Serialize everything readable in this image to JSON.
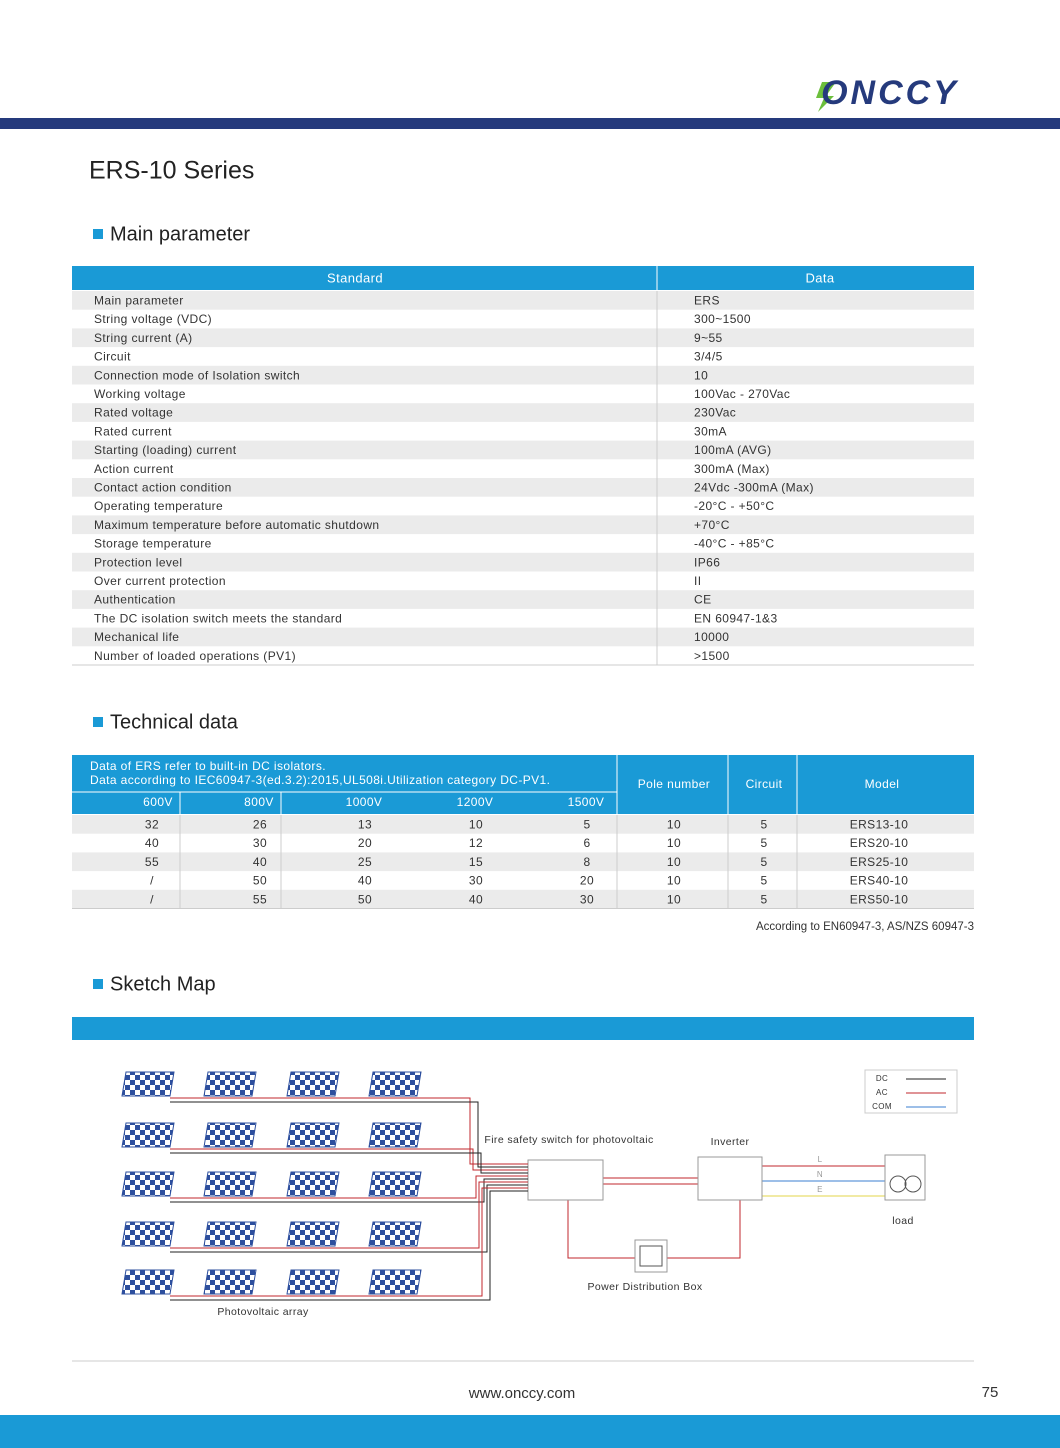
{
  "header": {
    "logo": "ONCCY"
  },
  "title": "ERS-10 Series",
  "main_parameter": {
    "heading": "Main parameter",
    "columns": [
      "Standard",
      "Data"
    ],
    "rows": [
      [
        "Main parameter",
        "ERS"
      ],
      [
        "String voltage (VDC)",
        "300~1500"
      ],
      [
        "String current (A)",
        "9~55"
      ],
      [
        "Circuit",
        "3/4/5"
      ],
      [
        "Connection mode of Isolation switch",
        "10"
      ],
      [
        "Working voltage",
        "100Vac - 270Vac"
      ],
      [
        "Rated voltage",
        "230Vac"
      ],
      [
        "Rated current",
        "30mA"
      ],
      [
        "Starting (loading) current",
        "100mA (AVG)"
      ],
      [
        "Action current",
        "300mA (Max)"
      ],
      [
        "Contact action condition",
        "24Vdc -300mA (Max)"
      ],
      [
        "Operating temperature",
        "-20°C - +50°C"
      ],
      [
        "Maximum temperature before automatic shutdown",
        "+70°C"
      ],
      [
        "Storage temperature",
        "-40°C - +85°C"
      ],
      [
        "Protection level",
        "IP66"
      ],
      [
        "Over current protection",
        "II"
      ],
      [
        "Authentication",
        "CE"
      ],
      [
        "The DC isolation switch meets the standard",
        "EN 60947-1&3"
      ],
      [
        "Mechanical life",
        "10000"
      ],
      [
        "Number of loaded operations (PV1)",
        ">1500"
      ]
    ]
  },
  "technical_data": {
    "heading": "Technical data",
    "notes": [
      "Data of ERS refer to built-in DC isolators.",
      "Data according to IEC60947-3(ed.3.2):2015,UL508i.Utilization category DC-PV1."
    ],
    "voltage_columns": [
      "600V",
      "800V",
      "1000V",
      "1200V",
      "1500V"
    ],
    "columns": [
      "Pole number",
      "Circuit",
      "Model"
    ],
    "rows": [
      [
        32,
        26,
        13,
        10,
        5,
        10,
        5,
        "ERS13-10"
      ],
      [
        40,
        30,
        20,
        12,
        6,
        10,
        5,
        "ERS20-10"
      ],
      [
        55,
        40,
        25,
        15,
        8,
        10,
        5,
        "ERS25-10"
      ],
      [
        "/",
        50,
        40,
        30,
        20,
        10,
        5,
        "ERS40-10"
      ],
      [
        "/",
        55,
        50,
        40,
        30,
        10,
        5,
        "ERS50-10"
      ]
    ],
    "footnote": "According to EN60947-3, AS/NZS 60947-3"
  },
  "sketch_map": {
    "heading": "Sketch Map",
    "switch_label": "Fire safety switch for photovoltaic",
    "inverter_label": "Inverter",
    "load_label": "load",
    "distribution_label": "Power Distribution Box",
    "array_label": "Photovoltaic array",
    "legend": [
      "DC",
      "AC",
      "COM"
    ],
    "lines": [
      "L",
      "N",
      "E"
    ]
  },
  "footer": {
    "url": "www.onccy.com",
    "page": "75"
  }
}
